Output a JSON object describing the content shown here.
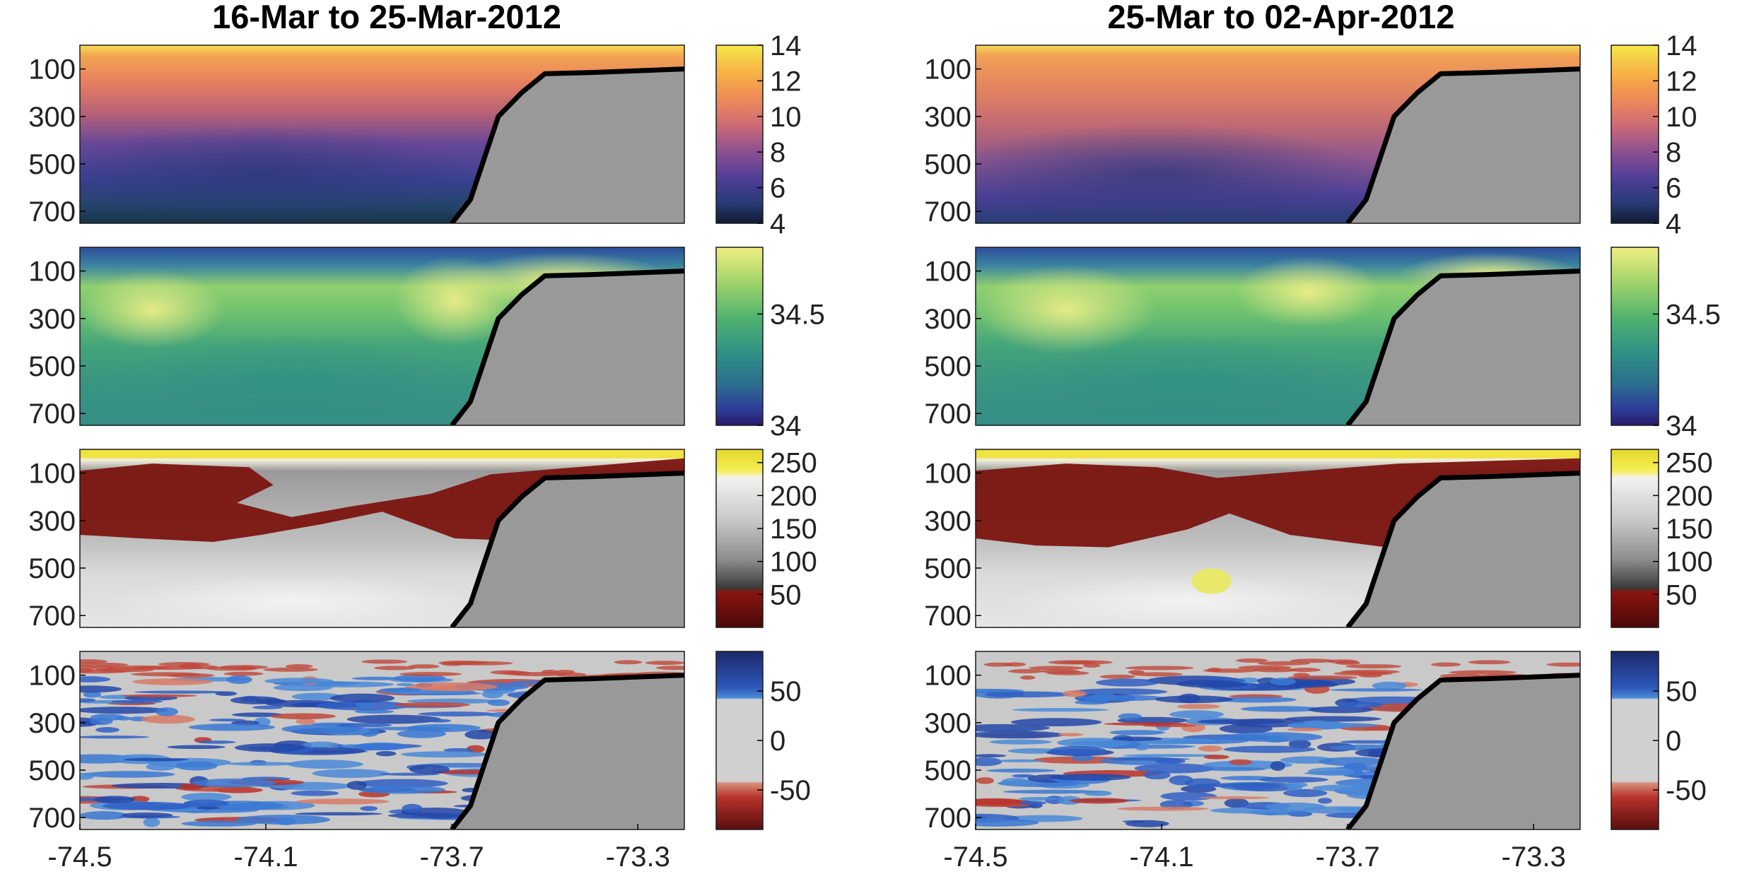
{
  "figure": {
    "columns": [
      {
        "title": "16-Mar to 25-Mar-2012"
      },
      {
        "title": "25-Mar to 02-Apr-2012"
      }
    ]
  },
  "chart_data": [
    {
      "type": "heatmap",
      "title": "16-Mar to 25-Mar-2012",
      "row": 1,
      "x_range": [
        -74.5,
        -73.2
      ],
      "y_range": [
        0,
        750
      ],
      "y_reversed": true,
      "yticks": [
        100,
        300,
        500,
        700
      ],
      "xticks": [],
      "colormap": "thermal",
      "clim": [
        4,
        14
      ],
      "colorbar_ticks": [
        4,
        6,
        8,
        10,
        12,
        14
      ],
      "bathymetry": {
        "lon": [
          -73.7,
          -73.66,
          -73.6,
          -73.55,
          -73.5,
          -73.4,
          -73.2
        ],
        "depth": [
          750,
          650,
          300,
          200,
          120,
          115,
          100
        ]
      }
    },
    {
      "type": "heatmap",
      "title": "25-Mar to 02-Apr-2012",
      "row": 1,
      "x_range": [
        -74.5,
        -73.2
      ],
      "y_range": [
        0,
        750
      ],
      "y_reversed": true,
      "yticks": [
        100,
        300,
        500,
        700
      ],
      "xticks": [],
      "colormap": "thermal",
      "clim": [
        4,
        14
      ],
      "colorbar_ticks": [
        4,
        6,
        8,
        10,
        12,
        14
      ],
      "bathymetry": {
        "lon": [
          -73.7,
          -73.66,
          -73.6,
          -73.55,
          -73.5,
          -73.4,
          -73.2
        ],
        "depth": [
          750,
          650,
          300,
          200,
          120,
          115,
          100
        ]
      }
    },
    {
      "type": "heatmap",
      "title": "",
      "row": 2,
      "x_range": [
        -74.5,
        -73.2
      ],
      "y_range": [
        0,
        750
      ],
      "y_reversed": true,
      "yticks": [
        100,
        300,
        500,
        700
      ],
      "xticks": [],
      "colormap": "haline",
      "clim": [
        34,
        34.8
      ],
      "colorbar_ticks": [
        34,
        34.5
      ]
    },
    {
      "type": "heatmap",
      "title": "",
      "row": 2,
      "x_range": [
        -74.5,
        -73.2
      ],
      "y_range": [
        0,
        750
      ],
      "y_reversed": true,
      "yticks": [
        100,
        300,
        500,
        700
      ],
      "xticks": [],
      "colormap": "haline",
      "clim": [
        34,
        34.8
      ],
      "colorbar_ticks": [
        34,
        34.5
      ]
    },
    {
      "type": "heatmap",
      "title": "",
      "row": 3,
      "x_range": [
        -74.5,
        -73.2
      ],
      "y_range": [
        0,
        750
      ],
      "y_reversed": true,
      "yticks": [
        100,
        300,
        500,
        700
      ],
      "xticks": [],
      "colormap": "oxygen",
      "clim": [
        0,
        270
      ],
      "colorbar_ticks": [
        50,
        100,
        150,
        200,
        250
      ]
    },
    {
      "type": "heatmap",
      "title": "",
      "row": 3,
      "x_range": [
        -74.5,
        -73.2
      ],
      "y_range": [
        0,
        750
      ],
      "y_reversed": true,
      "yticks": [
        100,
        300,
        500,
        700
      ],
      "xticks": [],
      "colormap": "oxygen",
      "clim": [
        0,
        270
      ],
      "colorbar_ticks": [
        50,
        100,
        150,
        200,
        250
      ]
    },
    {
      "type": "heatmap",
      "title": "",
      "row": 4,
      "x_range": [
        -74.5,
        -73.2
      ],
      "y_range": [
        0,
        750
      ],
      "y_reversed": true,
      "yticks": [
        100,
        300,
        500,
        700
      ],
      "xticks": [
        -74.5,
        -74.1,
        -73.7,
        -73.3
      ],
      "colormap": "diverging",
      "clim": [
        -90,
        90
      ],
      "colorbar_ticks": [
        -50,
        0,
        50
      ]
    },
    {
      "type": "heatmap",
      "title": "",
      "row": 4,
      "x_range": [
        -74.5,
        -73.2
      ],
      "y_range": [
        0,
        750
      ],
      "y_reversed": true,
      "yticks": [
        100,
        300,
        500,
        700
      ],
      "xticks": [
        -74.5,
        -74.1,
        -73.7,
        -73.3
      ],
      "colormap": "diverging",
      "clim": [
        -90,
        90
      ],
      "colorbar_ticks": [
        -50,
        0,
        50
      ]
    }
  ]
}
